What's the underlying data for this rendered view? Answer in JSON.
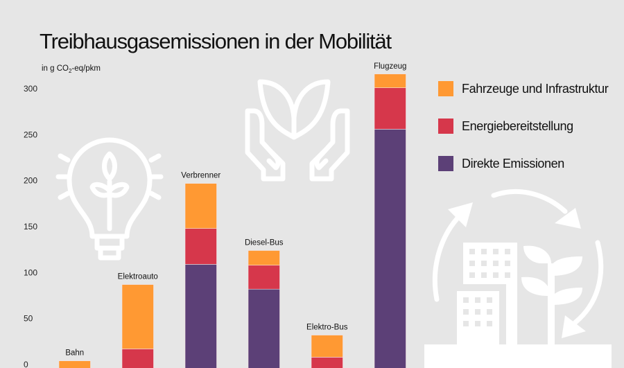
{
  "chart_data": {
    "type": "bar",
    "stacked": true,
    "title": "Treibhausgasemissionen in der Mobilität",
    "ylabel_prefix": "in g CO",
    "ylabel_sub": "2",
    "ylabel_suffix": "-eq/pkm",
    "xlabel": "",
    "ylim": [
      0,
      300
    ],
    "yticks": [
      0,
      50,
      100,
      150,
      200,
      250,
      300
    ],
    "grid": false,
    "legend_position": "right",
    "categories": [
      "Bahn",
      "Elektroauto",
      "Verbrenner",
      "Diesel-Bus",
      "Elektro-Bus",
      "Flugzeug"
    ],
    "series": [
      {
        "name": "Direkte Emissionen",
        "color": "#5c4077",
        "values": [
          0,
          0,
          109,
          82,
          0,
          256
        ]
      },
      {
        "name": "Energiebereitstellung",
        "color": "#d6374b",
        "values": [
          0,
          17,
          39,
          26,
          8,
          45
        ]
      },
      {
        "name": "Fahrzeuge und Infrastruktur",
        "color": "#ff9933",
        "values": [
          4,
          70,
          49,
          16,
          24,
          15
        ]
      }
    ],
    "legend_order": [
      "Fahrzeuge und Infrastruktur",
      "Energiebereitstellung",
      "Direkte Emissionen"
    ]
  },
  "decor": {
    "icons": [
      "lightbulb-plant-icon",
      "hands-plant-icon",
      "city-cycle-icon"
    ],
    "background": "#e6e6e6"
  }
}
